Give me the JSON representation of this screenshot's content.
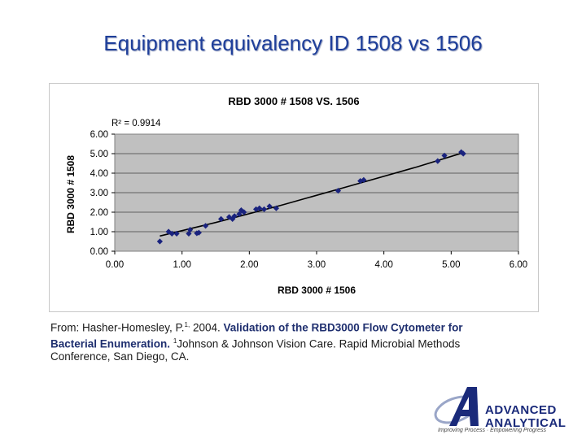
{
  "slide": {
    "title": "Equipment equivalency ID 1508 vs 1506"
  },
  "chart_data": {
    "type": "scatter",
    "title": "RBD 3000 # 1508 VS. 1506",
    "xlabel": "RBD 3000 # 1506",
    "ylabel": "RBD 3000 # 1508",
    "xlim": [
      0,
      6
    ],
    "ylim": [
      0,
      6
    ],
    "xticks": [
      "0.00",
      "1.00",
      "2.00",
      "3.00",
      "4.00",
      "5.00",
      "6.00"
    ],
    "yticks": [
      "0.00",
      "1.00",
      "2.00",
      "3.00",
      "4.00",
      "5.00",
      "6.00"
    ],
    "annotation": "R² = 0.9914",
    "grid": true,
    "legend": "none",
    "marker_color": "#1a237e",
    "plot_bg": "#c0c0c0",
    "trendline": true,
    "points": [
      {
        "x": 0.67,
        "y": 0.5
      },
      {
        "x": 0.8,
        "y": 1.0
      },
      {
        "x": 0.85,
        "y": 0.9
      },
      {
        "x": 0.92,
        "y": 0.9
      },
      {
        "x": 1.1,
        "y": 0.9
      },
      {
        "x": 1.12,
        "y": 1.1
      },
      {
        "x": 1.22,
        "y": 0.92
      },
      {
        "x": 1.25,
        "y": 0.95
      },
      {
        "x": 1.35,
        "y": 1.3
      },
      {
        "x": 1.58,
        "y": 1.65
      },
      {
        "x": 1.7,
        "y": 1.75
      },
      {
        "x": 1.75,
        "y": 1.65
      },
      {
        "x": 1.78,
        "y": 1.8
      },
      {
        "x": 1.85,
        "y": 1.9
      },
      {
        "x": 1.88,
        "y": 2.1
      },
      {
        "x": 1.92,
        "y": 2.0
      },
      {
        "x": 2.1,
        "y": 2.15
      },
      {
        "x": 2.15,
        "y": 2.2
      },
      {
        "x": 2.22,
        "y": 2.15
      },
      {
        "x": 2.3,
        "y": 2.3
      },
      {
        "x": 2.4,
        "y": 2.2
      },
      {
        "x": 3.32,
        "y": 3.1
      },
      {
        "x": 3.65,
        "y": 3.6
      },
      {
        "x": 3.7,
        "y": 3.65
      },
      {
        "x": 4.8,
        "y": 4.62
      },
      {
        "x": 4.9,
        "y": 4.9
      },
      {
        "x": 5.15,
        "y": 5.08
      },
      {
        "x": 5.18,
        "y": 5.0
      }
    ],
    "trend_points": [
      {
        "x": 0.67,
        "y": 0.78
      },
      {
        "x": 1.5,
        "y": 1.47
      },
      {
        "x": 2.5,
        "y": 2.38
      },
      {
        "x": 3.5,
        "y": 3.35
      },
      {
        "x": 4.5,
        "y": 4.33
      },
      {
        "x": 5.18,
        "y": 5.05
      }
    ]
  },
  "citation": {
    "prefix": "From: Hasher-Homesley, P.",
    "sup1": "1,",
    "middle": " 2004. ",
    "bold_title": "Validation of the RBD3000 Flow Cytometer for Bacterial Enumeration.",
    "sup2": "1",
    "rest": "Johnson & Johnson Vision Care. Rapid Microbial Methods Conference, San Diego, CA."
  },
  "logo": {
    "line1": "ADVANCED",
    "line2": "ANALYTICAL",
    "tagline": "Improving Process · Empowering Progress",
    "color": "#1a2a7a"
  }
}
